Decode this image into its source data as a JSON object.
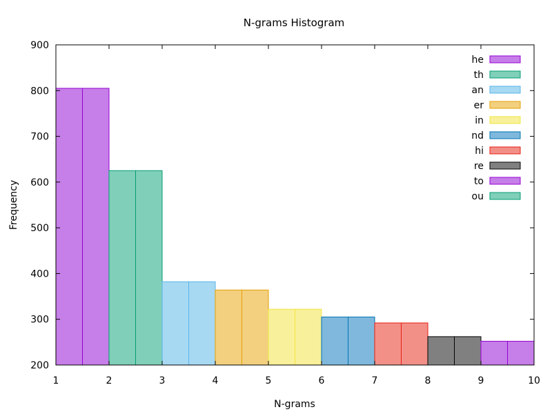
{
  "chart_data": {
    "type": "bar",
    "title": "N-grams Histogram",
    "xlabel": "N-grams",
    "ylabel": "Frequency",
    "xlim": [
      1,
      10
    ],
    "ylim": [
      200,
      900
    ],
    "x_ticks": [
      "1",
      "2",
      "3",
      "4",
      "5",
      "6",
      "7",
      "8",
      "9",
      "10"
    ],
    "y_ticks": [
      "200",
      "300",
      "400",
      "500",
      "600",
      "700",
      "800",
      "900"
    ],
    "grid": false,
    "legend_position": "top-right",
    "series": [
      {
        "name": "he",
        "x": 1,
        "value": 805,
        "fill": "#c67ee8",
        "stroke": "#9400d3"
      },
      {
        "name": "th",
        "x": 2,
        "value": 625,
        "fill": "#80cfb8",
        "stroke": "#009e73"
      },
      {
        "name": "an",
        "x": 3,
        "value": 382,
        "fill": "#a8d9f2",
        "stroke": "#56b4e9"
      },
      {
        "name": "er",
        "x": 4,
        "value": 364,
        "fill": "#f2d080",
        "stroke": "#e69f00"
      },
      {
        "name": "in",
        "x": 5,
        "value": 322,
        "fill": "#f8f09a",
        "stroke": "#f0e442"
      },
      {
        "name": "nd",
        "x": 6,
        "value": 305,
        "fill": "#7fb8dc",
        "stroke": "#0072b2"
      },
      {
        "name": "hi",
        "x": 7,
        "value": 292,
        "fill": "#f29088",
        "stroke": "#e51e10"
      },
      {
        "name": "re",
        "x": 8,
        "value": 262,
        "fill": "#808080",
        "stroke": "#000000"
      },
      {
        "name": "to",
        "x": 9,
        "value": 252,
        "fill": "#c67ee8",
        "stroke": "#9400d3"
      },
      {
        "name": "ou",
        "x": 10,
        "value": 0,
        "fill": "#80cfb8",
        "stroke": "#009e73"
      }
    ]
  }
}
